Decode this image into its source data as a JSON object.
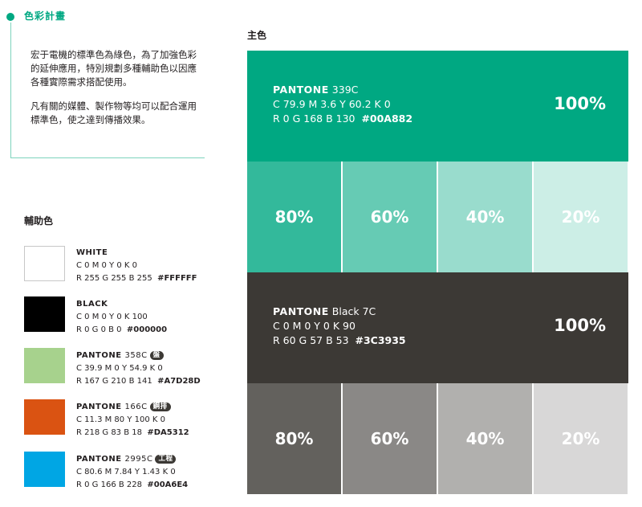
{
  "section_title": "色彩計畫",
  "intro": {
    "p1": "宏于電機的標準色為綠色，為了加強色彩的延伸應用，特別規劃多種輔助色以因應各種實際需求搭配使用。",
    "p2": "凡有關的媒體、製作物等均可以配合運用標準色，使之達到傳播效果。"
  },
  "aux": {
    "title": "輔助色",
    "items": [
      {
        "name": "WHITE",
        "number": "",
        "tag": "",
        "cmyk": "C 0  M 0  Y 0  K 0",
        "rgb": "R 255  G 255  B 255",
        "hex": "#FFFFFF",
        "color": "#FFFFFF"
      },
      {
        "name": "BLACK",
        "number": "",
        "tag": "",
        "cmyk": "C 0  M 0  Y 0  K 100",
        "rgb": "R 0  G 0  B 0",
        "hex": "#000000",
        "color": "#000000"
      },
      {
        "name": "PANTONE",
        "number": "358C",
        "tag": "盤",
        "cmyk": "C 39.9  M 0  Y 54.9  K 0",
        "rgb": "R 167  G 210  B 141",
        "hex": "#A7D28D",
        "color": "#A7D28D"
      },
      {
        "name": "PANTONE",
        "number": "166C",
        "tag": "鋼排",
        "cmyk": "C 11.3  M 80  Y 100  K 0",
        "rgb": "R 218  G 83  B 18",
        "hex": "#DA5312",
        "color": "#DA5312"
      },
      {
        "name": "PANTONE",
        "number": "2995C",
        "tag": "工程",
        "cmyk": "C 80.6  M 7.84  Y 1.43  K 0",
        "rgb": "R 0  G 166  B 228",
        "hex": "#00A6E4",
        "color": "#00A6E4"
      }
    ]
  },
  "main": {
    "title": "主色",
    "green": {
      "name": "PANTONE",
      "number": "339C",
      "cmyk": "C 79.9  M 3.6  Y 60.2  K 0",
      "rgb": "R 0  G 168  B 130",
      "hex": "#00A882",
      "percent": "100%",
      "color": "#00A882",
      "tints": [
        {
          "label": "80%",
          "color": "#33B99B"
        },
        {
          "label": "60%",
          "color": "#66CBB4"
        },
        {
          "label": "40%",
          "color": "#99DCCD"
        },
        {
          "label": "20%",
          "color": "#CCEEE6"
        }
      ]
    },
    "black": {
      "name": "PANTONE",
      "number": "Black 7C",
      "cmyk": "C 0  M 0  Y 0  K 90",
      "rgb": "R 60  G 57  B 53",
      "hex": "#3C3935",
      "percent": "100%",
      "color": "#3C3935",
      "tints": [
        {
          "label": "80%",
          "color": "#63615D"
        },
        {
          "label": "60%",
          "color": "#8A8886"
        },
        {
          "label": "40%",
          "color": "#B1B0AE"
        },
        {
          "label": "20%",
          "color": "#D8D7D7"
        }
      ]
    }
  }
}
